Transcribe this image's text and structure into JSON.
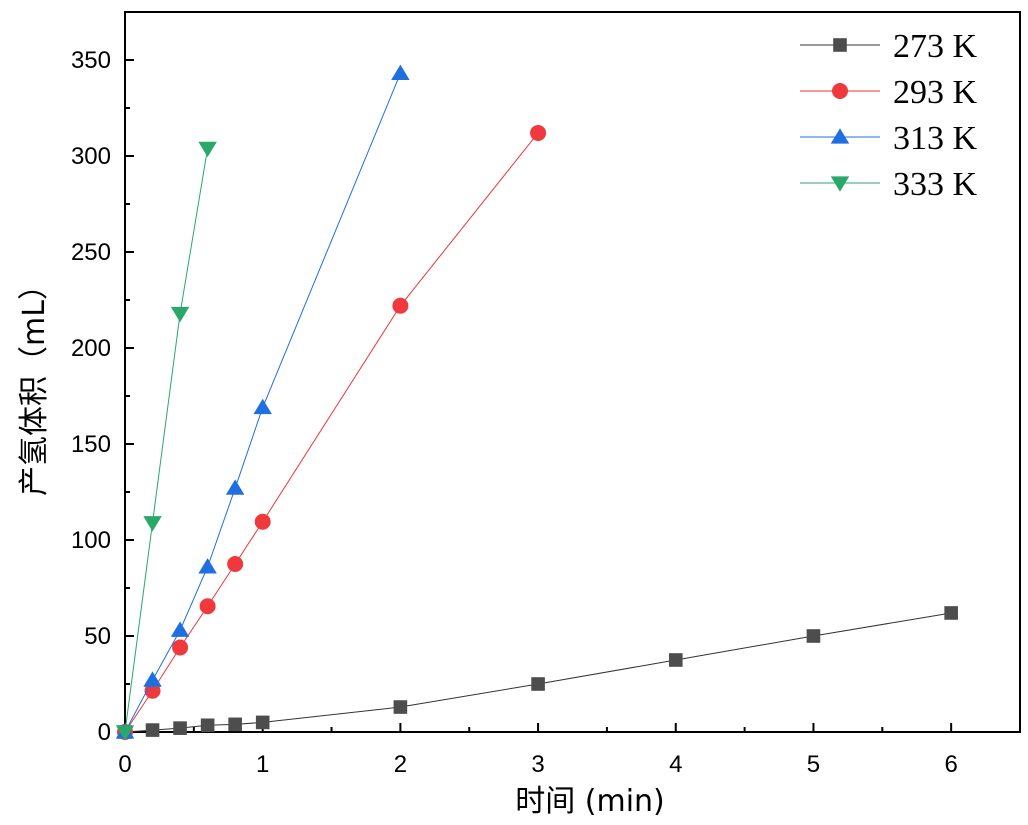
{
  "chart_data": {
    "type": "line",
    "title": "",
    "xlabel": "时间 (min)",
    "ylabel": "产氢体积（mL）",
    "xlim": [
      0,
      6.5
    ],
    "ylim": [
      0,
      375
    ],
    "xticks": [
      0,
      1,
      2,
      3,
      4,
      5,
      6
    ],
    "yticks": [
      0,
      50,
      100,
      150,
      200,
      250,
      300,
      350
    ],
    "grid": false,
    "legend_position": "top-right",
    "series": [
      {
        "name": "273 K",
        "marker": "square",
        "color": "#4d4d4d",
        "line_color": "#333333",
        "x": [
          0,
          0.2,
          0.4,
          0.6,
          0.8,
          1,
          2,
          3,
          4,
          5,
          6
        ],
        "y": [
          0,
          1,
          2,
          3.5,
          4,
          5,
          13,
          25,
          37.5,
          50,
          62
        ]
      },
      {
        "name": "293 K",
        "marker": "circle",
        "color": "#f0393d",
        "line_color": "#e8373b",
        "x": [
          0,
          0.2,
          0.4,
          0.6,
          0.8,
          1,
          2,
          3
        ],
        "y": [
          0,
          21.5,
          44,
          65.5,
          87.5,
          109.5,
          222,
          312
        ]
      },
      {
        "name": "313 K",
        "marker": "triangle-up",
        "color": "#1f6fe0",
        "line_color": "#1f6fe0",
        "x": [
          0,
          0.2,
          0.4,
          0.6,
          0.8,
          1,
          2
        ],
        "y": [
          0,
          27,
          53,
          86,
          127,
          169,
          343
        ]
      },
      {
        "name": "333 K",
        "marker": "triangle-down",
        "color": "#2aa86a",
        "line_color": "#2aa86a",
        "x": [
          0,
          0.2,
          0.4,
          0.6
        ],
        "y": [
          0,
          109,
          218,
          304
        ]
      }
    ]
  }
}
